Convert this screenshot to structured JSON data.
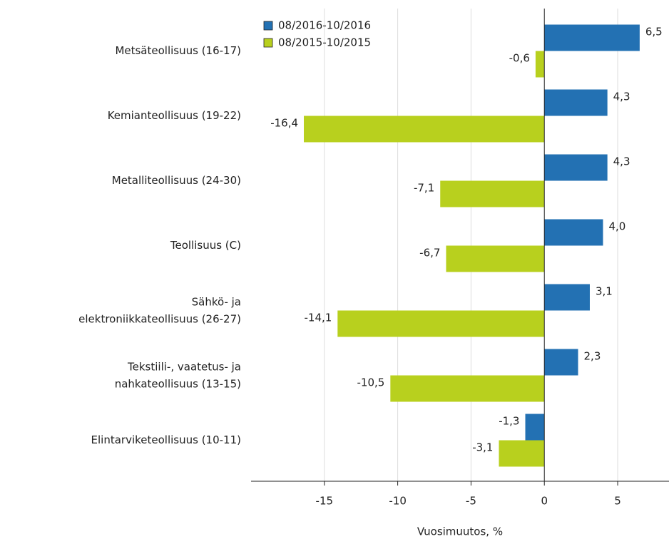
{
  "chart_data": {
    "type": "bar",
    "orientation": "horizontal",
    "x_label": "Vuosimuutos, %",
    "categories": [
      "Metsäteollisuus (16-17)",
      "Kemianteollisuus (19-22)",
      "Metalliteollisuus (24-30)",
      "Teollisuus (C)",
      "Sähkö- ja\nelektroniikkateollisuus (26-27)",
      "Tekstiili-, vaatetus- ja\nnahkateollisuus (13-15)",
      "Elintarviketeollisuus (10-11)"
    ],
    "series": [
      {
        "name": "08/2016-10/2016",
        "color": "#2371b3",
        "values": [
          6.5,
          4.3,
          4.3,
          4.0,
          3.1,
          2.3,
          -1.3
        ],
        "value_labels": [
          "6,5",
          "4,3",
          "4,3",
          "4,0",
          "3,1",
          "2,3",
          "-1,3"
        ]
      },
      {
        "name": "08/2015-10/2015",
        "color": "#b8d01e",
        "values": [
          -0.6,
          -16.4,
          -7.1,
          -6.7,
          -14.1,
          -10.5,
          -3.1
        ],
        "value_labels": [
          "-0,6",
          "-16,4",
          "-7,1",
          "-6,7",
          "-14,1",
          "-10,5",
          "-3,1"
        ]
      }
    ],
    "xlim": [
      -20,
      8.5
    ],
    "xticks": [
      -15,
      -10,
      -5,
      0,
      5
    ],
    "grid": true,
    "legend": "top-left"
  }
}
